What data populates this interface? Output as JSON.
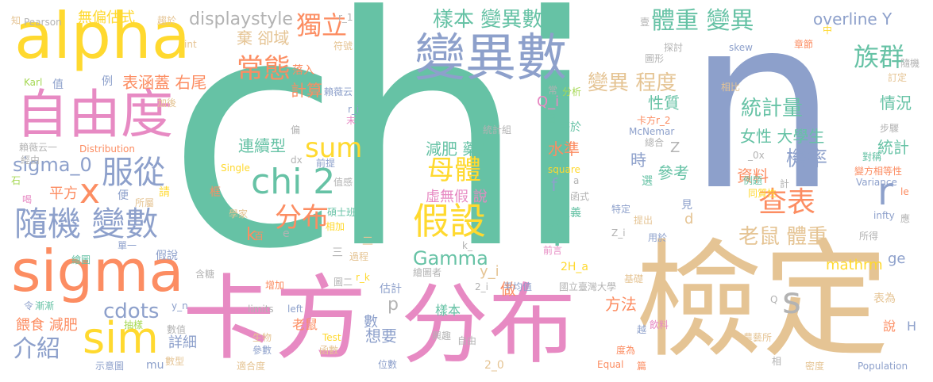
{
  "palette": {
    "green": "#66c2a5",
    "orange": "#fc8d62",
    "blue": "#8da0cb",
    "pink": "#e78ac3",
    "lime": "#a6d854",
    "yellow": "#ffd92f",
    "tan": "#e5c494",
    "grey": "#b3b3b3"
  },
  "words": [
    {
      "text": "chi",
      "color": "green"
    },
    {
      "text": "n",
      "color": "blue"
    },
    {
      "text": "檢定",
      "color": "tan"
    },
    {
      "text": "卡方",
      "color": "pink"
    },
    {
      "text": "分布",
      "color": "pink"
    },
    {
      "text": "變異數",
      "color": "blue"
    },
    {
      "text": "alpha",
      "color": "yellow"
    },
    {
      "text": "自由度",
      "color": "pink"
    },
    {
      "text": "sigma",
      "color": "orange"
    },
    {
      "text": "隨機 變數",
      "color": "blue"
    },
    {
      "text": "sim",
      "color": "yellow"
    },
    {
      "text": "chi 2",
      "color": "green"
    },
    {
      "text": "假設",
      "color": "yellow"
    },
    {
      "text": "母體",
      "color": "yellow"
    },
    {
      "text": "服從",
      "color": "blue"
    },
    {
      "text": "獨立",
      "color": "orange"
    },
    {
      "text": "常態",
      "color": "orange"
    },
    {
      "text": "族群",
      "color": "green"
    },
    {
      "text": "體重 變異",
      "color": "green"
    },
    {
      "text": "查表",
      "color": "orange"
    },
    {
      "text": "r",
      "color": "blue"
    },
    {
      "text": "s",
      "color": "grey"
    },
    {
      "text": "x",
      "color": "orange"
    },
    {
      "text": "i",
      "color": "green"
    },
    {
      "text": "樣本 變異數",
      "color": "green"
    },
    {
      "text": "變異 程度",
      "color": "tan"
    },
    {
      "text": "sum",
      "color": "yellow"
    },
    {
      "text": "分布",
      "color": "orange"
    },
    {
      "text": "sigma_0",
      "color": "blue"
    },
    {
      "text": "介紹",
      "color": "blue"
    },
    {
      "text": "cdots",
      "color": "blue"
    },
    {
      "text": "displaystyle",
      "color": "grey"
    },
    {
      "text": "無偏估式",
      "color": "yellow"
    },
    {
      "text": "統計量",
      "color": "green"
    },
    {
      "text": "老鼠 體重",
      "color": "tan"
    },
    {
      "text": "機率",
      "color": "blue"
    },
    {
      "text": "overline Y",
      "color": "blue"
    },
    {
      "text": "Gamma",
      "color": "green"
    },
    {
      "text": "連續型",
      "color": "green"
    },
    {
      "text": "減肥 藥品",
      "color": "green"
    },
    {
      "text": "虛無假 說",
      "color": "pink"
    },
    {
      "text": "表涵蓋 右尾",
      "color": "orange"
    },
    {
      "text": "棄 卻域",
      "color": "tan"
    },
    {
      "text": "計算",
      "color": "orange"
    },
    {
      "text": "性質",
      "color": "green"
    },
    {
      "text": "情況",
      "color": "green"
    },
    {
      "text": "女性 大學生",
      "color": "green"
    },
    {
      "text": "資料",
      "color": "orange"
    },
    {
      "text": "統計",
      "color": "green"
    },
    {
      "text": "水準",
      "color": "orange"
    },
    {
      "text": "參考",
      "color": "green"
    },
    {
      "text": "時",
      "color": "blue"
    },
    {
      "text": "想要",
      "color": "blue"
    },
    {
      "text": "做",
      "color": "orange"
    },
    {
      "text": "方法",
      "color": "orange"
    },
    {
      "text": "平方",
      "color": "orange"
    },
    {
      "text": "詳細",
      "color": "blue"
    },
    {
      "text": "餵食 減肥",
      "color": "orange"
    },
    {
      "text": "註",
      "color": "green"
    },
    {
      "text": "ge",
      "color": "blue"
    },
    {
      "text": "mathrm",
      "color": "yellow"
    },
    {
      "text": "Q_i",
      "color": "pink"
    },
    {
      "text": "f",
      "color": "blue"
    },
    {
      "text": "k",
      "color": "orange"
    },
    {
      "text": "y_i",
      "color": "tan"
    },
    {
      "text": "p",
      "color": "grey"
    },
    {
      "text": "d",
      "color": "tan"
    },
    {
      "text": "Z",
      "color": "grey"
    },
    {
      "text": "樣本",
      "color": "green"
    },
    {
      "text": "數",
      "color": "blue"
    },
    {
      "text": "老鼠",
      "color": "orange"
    },
    {
      "text": "Pearson",
      "color": "grey"
    },
    {
      "text": "知",
      "color": "tan"
    },
    {
      "text": "趨於",
      "color": "tan"
    },
    {
      "text": "int",
      "color": "tan"
    },
    {
      "text": "符號",
      "color": "tan"
    },
    {
      "text": "章節",
      "color": "orange"
    },
    {
      "text": "探討",
      "color": "grey"
    },
    {
      "text": "skew",
      "color": "blue"
    },
    {
      "text": "隨機",
      "color": "grey"
    },
    {
      "text": "訂定",
      "color": "tan"
    },
    {
      "text": "相比",
      "color": "tan"
    },
    {
      "text": "圖形",
      "color": "grey"
    },
    {
      "text": "Karl",
      "color": "lime"
    },
    {
      "text": "例",
      "color": "blue"
    },
    {
      "text": "值",
      "color": "blue"
    },
    {
      "text": "加後",
      "color": "tan"
    },
    {
      "text": "賴薇云",
      "color": "blue"
    },
    {
      "text": "賴薇云一",
      "color": "grey"
    },
    {
      "text": "Distribution",
      "color": "orange"
    },
    {
      "text": "經由",
      "color": "grey"
    },
    {
      "text": "石",
      "color": "lime"
    },
    {
      "text": "喝",
      "color": "pink"
    },
    {
      "text": "Single",
      "color": "yellow"
    },
    {
      "text": "前提",
      "color": "blue"
    },
    {
      "text": "落入",
      "color": "orange"
    },
    {
      "text": "框",
      "color": "orange"
    },
    {
      "text": "學家",
      "color": "tan"
    },
    {
      "text": "便",
      "color": "blue"
    },
    {
      "text": "所屬",
      "color": "tan"
    },
    {
      "text": "請",
      "color": "yellow"
    },
    {
      "text": "值感",
      "color": "grey"
    },
    {
      "text": "碩士班",
      "color": "green"
    },
    {
      "text": "相加",
      "color": "yellow"
    },
    {
      "text": "過程",
      "color": "tan"
    },
    {
      "text": "圖二",
      "color": "grey"
    },
    {
      "text": "增加",
      "color": "orange"
    },
    {
      "text": "含糖",
      "color": "grey"
    },
    {
      "text": "單一",
      "color": "blue"
    },
    {
      "text": "繪圖",
      "color": "green"
    },
    {
      "text": "假說",
      "color": "blue"
    },
    {
      "text": "估計",
      "color": "blue"
    },
    {
      "text": "繪圖者",
      "color": "grey"
    },
    {
      "text": "漸漸",
      "color": "green"
    },
    {
      "text": "令",
      "color": "blue"
    },
    {
      "text": "抽樣",
      "color": "lime"
    },
    {
      "text": "數值",
      "color": "grey"
    },
    {
      "text": "limits",
      "color": "grey"
    },
    {
      "text": "left",
      "color": "blue"
    },
    {
      "text": "生物",
      "color": "tan"
    },
    {
      "text": "參數",
      "color": "blue"
    },
    {
      "text": "函數",
      "color": "tan"
    },
    {
      "text": "位數",
      "color": "blue"
    },
    {
      "text": "示意圖",
      "color": "blue"
    },
    {
      "text": "數型",
      "color": "tan"
    },
    {
      "text": "mu",
      "color": "blue"
    },
    {
      "text": "適合度",
      "color": "tan"
    },
    {
      "text": "Test",
      "color": "yellow"
    },
    {
      "text": "興趣",
      "color": "grey"
    },
    {
      "text": "自由",
      "color": "grey"
    },
    {
      "text": "2_0",
      "color": "tan"
    },
    {
      "text": "平均值",
      "color": "blue"
    },
    {
      "text": "國立臺灣大學",
      "color": "grey"
    },
    {
      "text": "基礎",
      "color": "tan"
    },
    {
      "text": "Equal",
      "color": "orange"
    },
    {
      "text": "度為",
      "color": "orange"
    },
    {
      "text": "越",
      "color": "blue"
    },
    {
      "text": "飲料",
      "color": "pink"
    },
    {
      "text": "篇",
      "color": "orange"
    },
    {
      "text": "農藝所",
      "color": "tan"
    },
    {
      "text": "相",
      "color": "grey"
    },
    {
      "text": "密度",
      "color": "tan"
    },
    {
      "text": "Population",
      "color": "blue"
    },
    {
      "text": "表為",
      "color": "tan"
    },
    {
      "text": "說",
      "color": "orange"
    },
    {
      "text": "H",
      "color": "blue"
    },
    {
      "text": "所得",
      "color": "grey"
    },
    {
      "text": "應",
      "color": "grey"
    },
    {
      "text": "le",
      "color": "orange"
    },
    {
      "text": "infty",
      "color": "blue"
    },
    {
      "text": "Variance",
      "color": "blue"
    },
    {
      "text": "同質性",
      "color": "yellow"
    },
    {
      "text": "變方相等性",
      "color": "orange"
    },
    {
      "text": "對稱",
      "color": "green"
    },
    {
      "text": "例題",
      "color": "green"
    },
    {
      "text": "計",
      "color": "grey"
    },
    {
      "text": "_0x",
      "color": "grey"
    },
    {
      "text": "總合",
      "color": "grey"
    },
    {
      "text": "步驟",
      "color": "grey"
    },
    {
      "text": "McNemar",
      "color": "blue"
    },
    {
      "text": "卡方r_2",
      "color": "orange"
    },
    {
      "text": "等於",
      "color": "green"
    },
    {
      "text": "圖",
      "color": "green"
    },
    {
      "text": "分析",
      "color": "lime"
    },
    {
      "text": "常",
      "color": "grey"
    },
    {
      "text": "選",
      "color": "green"
    },
    {
      "text": "統計組",
      "color": "grey"
    },
    {
      "text": "函式",
      "color": "grey"
    },
    {
      "text": "定義",
      "color": "green"
    },
    {
      "text": "square",
      "color": "yellow"
    },
    {
      "text": "見",
      "color": "blue"
    },
    {
      "text": "特定",
      "color": "blue"
    },
    {
      "text": "提出",
      "color": "tan"
    },
    {
      "text": "用於",
      "color": "blue"
    },
    {
      "text": "Z_i",
      "color": "grey"
    },
    {
      "text": "2H_a",
      "color": "yellow"
    },
    {
      "text": "前言",
      "color": "pink"
    },
    {
      "text": "均",
      "color": "green"
    },
    {
      "text": "r_i",
      "color": "blue"
    },
    {
      "text": "偏",
      "color": "grey"
    },
    {
      "text": "末",
      "color": "pink"
    },
    {
      "text": "dx",
      "color": "grey"
    },
    {
      "text": "r_1",
      "color": "grey"
    },
    {
      "text": "r_k",
      "color": "yellow"
    },
    {
      "text": "2_i",
      "color": "grey"
    },
    {
      "text": "y_n",
      "color": "blue"
    },
    {
      "text": "百",
      "color": "orange"
    },
    {
      "text": "e",
      "color": "grey"
    },
    {
      "text": "k_",
      "color": "grey"
    },
    {
      "text": "三",
      "color": "grey"
    },
    {
      "text": "二",
      "color": "tan"
    },
    {
      "text": "中",
      "color": "yellow"
    },
    {
      "text": "壹",
      "color": "grey"
    },
    {
      "text": "a",
      "color": "grey"
    },
    {
      "text": "Q",
      "color": "grey"
    }
  ]
}
